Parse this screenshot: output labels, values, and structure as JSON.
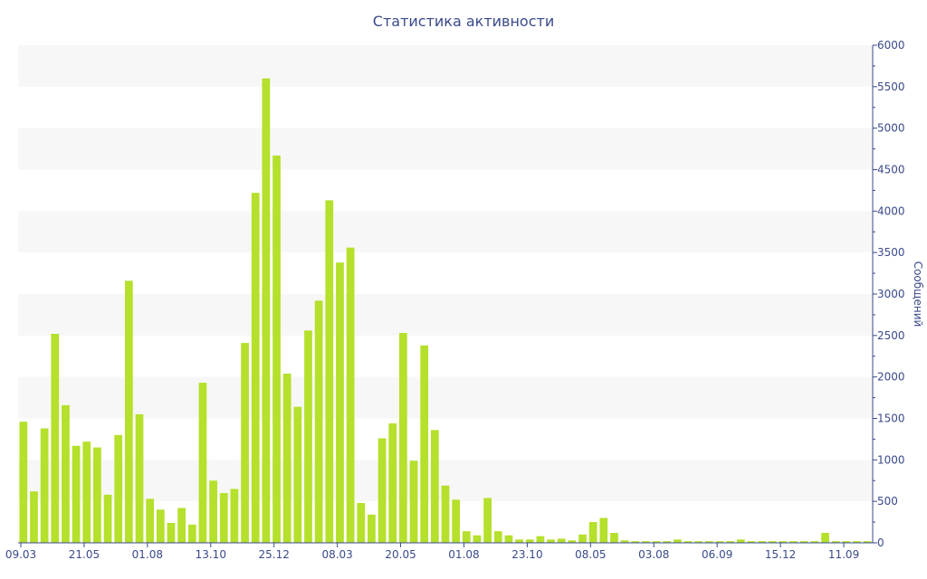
{
  "chart_data": {
    "type": "bar",
    "title": "Статистика активности",
    "xlabel": "",
    "ylabel": "Сообщений",
    "ylim": [
      0,
      6000
    ],
    "y_ticks": [
      0,
      500,
      1000,
      1500,
      2000,
      2500,
      3000,
      3500,
      4000,
      4500,
      5000,
      5500,
      6000
    ],
    "x_tick_labels": [
      {
        "label": "09.03",
        "index": 0
      },
      {
        "label": "21.05",
        "index": 6
      },
      {
        "label": "01.08",
        "index": 12
      },
      {
        "label": "13.10",
        "index": 18
      },
      {
        "label": "25.12",
        "index": 24
      },
      {
        "label": "08.03",
        "index": 30
      },
      {
        "label": "20.05",
        "index": 36
      },
      {
        "label": "01.08",
        "index": 42
      },
      {
        "label": "23.10",
        "index": 48
      },
      {
        "label": "08.05",
        "index": 54
      },
      {
        "label": "03.08",
        "index": 60
      },
      {
        "label": "06.09",
        "index": 66
      },
      {
        "label": "15.12",
        "index": 72
      },
      {
        "label": "11.09",
        "index": 78
      }
    ],
    "values": [
      1460,
      620,
      1380,
      2520,
      1660,
      1170,
      1220,
      1150,
      580,
      1300,
      3160,
      1550,
      530,
      400,
      240,
      420,
      220,
      1930,
      750,
      600,
      650,
      2410,
      4220,
      5600,
      4670,
      2040,
      1640,
      2560,
      2920,
      4130,
      3380,
      3560,
      480,
      340,
      1260,
      1440,
      2530,
      990,
      2380,
      1360,
      690,
      520,
      140,
      90,
      540,
      140,
      90,
      40,
      40,
      80,
      40,
      50,
      30,
      100,
      250,
      300,
      120,
      30,
      20,
      20,
      20,
      20,
      40,
      20,
      20,
      20,
      20,
      20,
      40,
      20,
      20,
      20,
      20,
      20,
      20,
      20,
      120,
      20,
      20,
      20,
      20
    ],
    "grid": "horizontal bands",
    "y_axis_side": "right",
    "colors": {
      "bar": "#b5e02b",
      "band": "#f7f7f7",
      "text": "#3a4a8a",
      "axis": "#3a4a8a"
    }
  }
}
